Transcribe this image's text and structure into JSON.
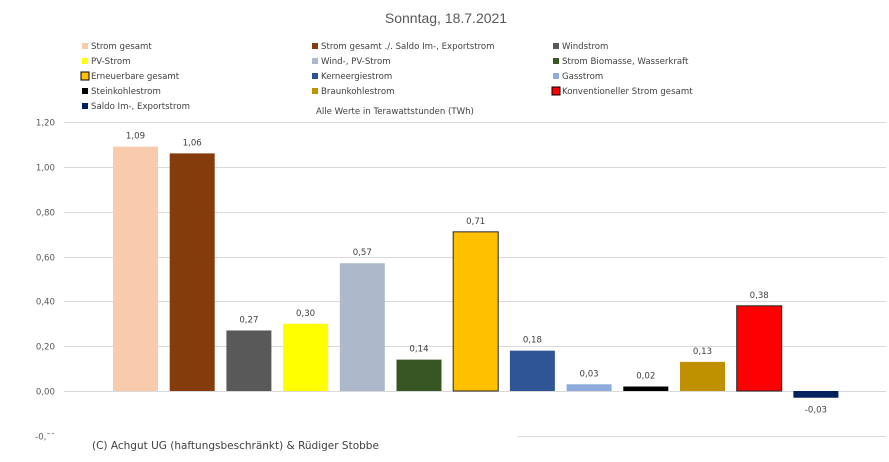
{
  "chart_data": {
    "type": "bar",
    "title": "Sonntag, 18.7.2021",
    "note": "Alle Werte in Terawattstunden (TWh)",
    "xlabel": "",
    "ylabel": "",
    "ylim": [
      -0.2,
      1.2
    ],
    "yticks": [
      1.2,
      1.0,
      0.8,
      0.6,
      0.4,
      0.2,
      0.0,
      -0.2
    ],
    "ytick_labels": [
      "1,20",
      "1,00",
      "0,80",
      "0,60",
      "0,40",
      "0,20",
      "0,00",
      "-0,¯¯"
    ],
    "grid": true,
    "legend_position": "top",
    "categories": [
      "Strom gesamt",
      "Strom gesamt ./. Saldo Im-, Exportstrom",
      "Windstrom",
      "PV-Strom",
      "Wind-, PV-Strom",
      "Strom Biomasse, Wasserkraft",
      "Erneuerbare gesamt",
      "Kerneergiestrom",
      "Gasstrom",
      "Steinkohlestrom",
      "Braunkohlestrom",
      "Konventioneller Strom gesamt",
      "Saldo Im-, Exportstrom"
    ],
    "values": [
      1.09,
      1.06,
      0.27,
      0.3,
      0.57,
      0.14,
      0.71,
      0.18,
      0.03,
      0.02,
      0.13,
      0.38,
      -0.03
    ],
    "value_labels": [
      "1,09",
      "1,06",
      "0,27",
      "0,30",
      "0,57",
      "0,14",
      "0,71",
      "0,18",
      "0,03",
      "0,02",
      "0,13",
      "0,38",
      "-0,03"
    ],
    "colors": [
      "#f8cbad",
      "#843c0c",
      "#595959",
      "#ffff00",
      "#adb9ca",
      "#375623",
      "#ffc000",
      "#2f5597",
      "#8faadc",
      "#000000",
      "#bf9000",
      "#ff0000",
      "#002060"
    ],
    "outlined": [
      false,
      false,
      false,
      false,
      false,
      false,
      true,
      false,
      false,
      false,
      false,
      true,
      false
    ],
    "legend_order": [
      0,
      1,
      2,
      3,
      4,
      5,
      6,
      7,
      8,
      9,
      10,
      11,
      12
    ]
  },
  "footer": {
    "copyright": "(C) Achgut UG (haftungsbeschränkt) & Rüdiger Stobbe"
  }
}
